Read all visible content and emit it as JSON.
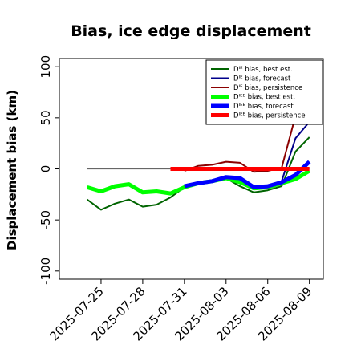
{
  "chart_data": {
    "type": "line",
    "title": "Bias, ice edge displacement",
    "xlabel": "",
    "ylabel": "Displacement bias (km)",
    "ylim": [
      -108,
      108
    ],
    "xlim": [
      "2025-07-22",
      "2025-08-10"
    ],
    "y_ticks": [
      -100,
      -50,
      0,
      50,
      100
    ],
    "y_tick_labels": [
      "-100",
      "-50",
      "0",
      "50",
      "100"
    ],
    "x_ticks": [
      "2025-07-25",
      "2025-07-28",
      "2025-07-31",
      "2025-08-03",
      "2025-08-06",
      "2025-08-09"
    ],
    "highlight_tick": "2025-07-31",
    "highlight_color": "#2e8b2e",
    "reference_line": {
      "y": 0,
      "from": "2025-07-24",
      "to": "2025-08-09",
      "color": "#666666"
    },
    "legend_position": "top-right",
    "series": [
      {
        "name": "Dᴵᴱ bias, best est.",
        "color": "#006400",
        "width": 2,
        "x": [
          "2025-07-24",
          "2025-07-25",
          "2025-07-26",
          "2025-07-27",
          "2025-07-28",
          "2025-07-29",
          "2025-07-30",
          "2025-07-31",
          "2025-08-01",
          "2025-08-02",
          "2025-08-03",
          "2025-08-04",
          "2025-08-05",
          "2025-08-06",
          "2025-08-07",
          "2025-08-08",
          "2025-08-09"
        ],
        "y": [
          -30,
          -40,
          -34,
          -30,
          -37,
          -35,
          -28,
          -18,
          -14,
          -12,
          -9,
          -17,
          -23,
          -21,
          -17,
          17,
          31
        ]
      },
      {
        "name": "Dᴵᴱ bias, forecast",
        "color": "#00008b",
        "width": 2,
        "x": [
          "2025-07-31",
          "2025-08-01",
          "2025-08-02",
          "2025-08-03",
          "2025-08-04",
          "2025-08-05",
          "2025-08-06",
          "2025-08-07",
          "2025-08-08",
          "2025-08-09"
        ],
        "y": [
          -17,
          -14,
          -12,
          -8,
          -9,
          -18,
          -17,
          -12,
          30,
          46
        ]
      },
      {
        "name": "Dᴵᴱ bias, persistence",
        "color": "#8b0000",
        "width": 2,
        "x": [
          "2025-07-31",
          "2025-08-01",
          "2025-08-02",
          "2025-08-03",
          "2025-08-04",
          "2025-08-05",
          "2025-08-06",
          "2025-08-07",
          "2025-08-08",
          "2025-08-09"
        ],
        "y": [
          -2,
          3,
          4,
          7,
          6,
          -3,
          -2,
          1,
          52,
          62
        ]
      },
      {
        "name": "Dᴵᴱᴱ bias, best est.",
        "color": "#00ff00",
        "width": 5,
        "x": [
          "2025-07-24",
          "2025-07-25",
          "2025-07-26",
          "2025-07-27",
          "2025-07-28",
          "2025-07-29",
          "2025-07-30",
          "2025-07-31",
          "2025-08-01",
          "2025-08-02",
          "2025-08-03",
          "2025-08-04",
          "2025-08-05",
          "2025-08-06",
          "2025-08-07",
          "2025-08-08",
          "2025-08-09"
        ],
        "y": [
          -18,
          -22,
          -17,
          -15,
          -23,
          -22,
          -24,
          -18,
          -14,
          -12,
          -9,
          -13,
          -19,
          -18,
          -14,
          -10,
          -2
        ]
      },
      {
        "name": "Dᴵᴱᴱ bias, forecast",
        "color": "#0000ff",
        "width": 5,
        "x": [
          "2025-07-31",
          "2025-08-01",
          "2025-08-02",
          "2025-08-03",
          "2025-08-04",
          "2025-08-05",
          "2025-08-06",
          "2025-08-07",
          "2025-08-08",
          "2025-08-09"
        ],
        "y": [
          -17,
          -14,
          -12,
          -8,
          -9,
          -18,
          -17,
          -13,
          -6,
          7
        ]
      },
      {
        "name": "Dᴵᴱᴱ bias, persistence",
        "color": "#ff0000",
        "width": 5,
        "x": [
          "2025-07-30",
          "2025-07-31",
          "2025-08-01",
          "2025-08-02",
          "2025-08-03",
          "2025-08-04",
          "2025-08-05",
          "2025-08-06",
          "2025-08-07",
          "2025-08-08",
          "2025-08-09"
        ],
        "y": [
          0,
          0,
          0,
          0,
          0,
          0,
          0,
          0,
          0,
          0,
          0
        ]
      }
    ]
  }
}
